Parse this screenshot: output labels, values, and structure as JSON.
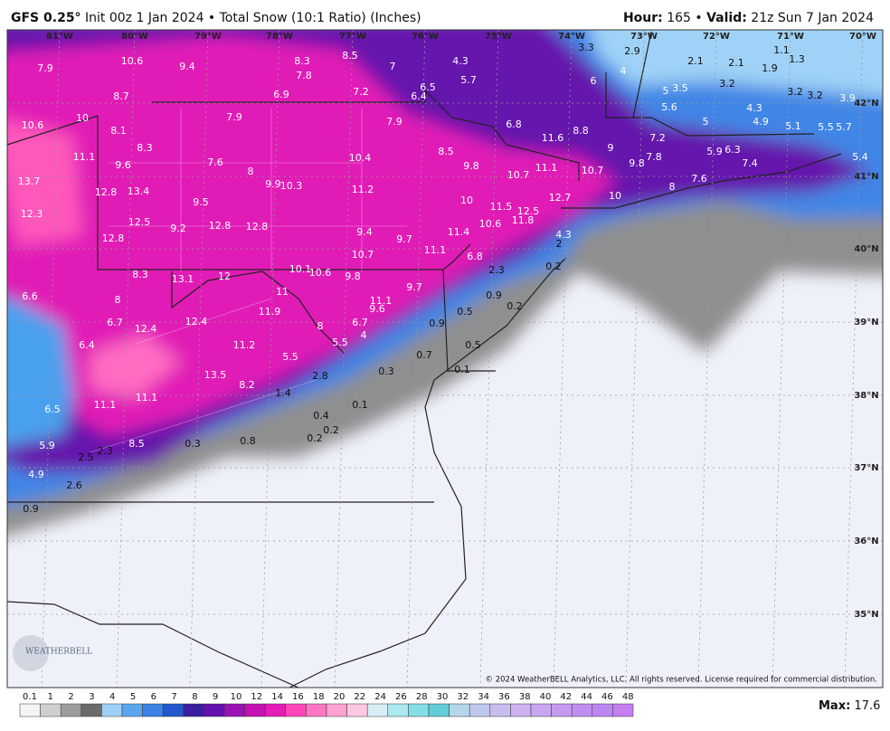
{
  "header": {
    "model": "GFS 0.25°",
    "description": "Init 00z 1 Jan 2024 • Total Snow (10:1 Ratio) (Inches)",
    "hour_label": "Hour:",
    "hour": "165 •",
    "valid_label": "Valid:",
    "valid": "21z Sun 7 Jan 2024"
  },
  "map": {
    "lon_labels": [
      "81°W",
      "80°W",
      "79°W",
      "78°W",
      "77°W",
      "76°W",
      "75°W",
      "74°W",
      "73°W",
      "72°W",
      "71°W",
      "70°W"
    ],
    "lat_labels": [
      "42°N",
      "41°N",
      "40°N",
      "39°N",
      "38°N",
      "37°N",
      "36°N",
      "35°N"
    ],
    "values": [
      7.9,
      10.6,
      9.4,
      8.3,
      7.8,
      8.5,
      7.0,
      6.9,
      7.2,
      6.4,
      6.5,
      4.3,
      5.7,
      3.3,
      2.9,
      4.0,
      6.0,
      2.1,
      2.1,
      1.9,
      1.1,
      1.3,
      3.5,
      3.2,
      5.0,
      3.2,
      3.2,
      3.9,
      5.6,
      4.3,
      5.0,
      4.9,
      5.1,
      5.5,
      5.7,
      5.4,
      8.7,
      10.6,
      10.0,
      8.1,
      7.9,
      7.9,
      6.8,
      8.8,
      11.6,
      9.0,
      7.2,
      5.9,
      6.3,
      7.4,
      7.8,
      9.8,
      11.1,
      8.3,
      9.6,
      7.6,
      8.0,
      10.4,
      8.5,
      9.8,
      10.7,
      11.1,
      10.7,
      7.6,
      8.0,
      10.0,
      12.7,
      13.7,
      12.8,
      13.4,
      9.9,
      10.3,
      11.2,
      9.5,
      10.0,
      11.5,
      12.5,
      11.8,
      12.3,
      12.5,
      12.8,
      12.8,
      9.2,
      10.6,
      11.4,
      9.4,
      9.7,
      4.3,
      2.0,
      12.8,
      11.1,
      10.7,
      6.8,
      0.2,
      2.3,
      10.1,
      10.6,
      9.8,
      8.3,
      13.1,
      12.0,
      9.7,
      11.0,
      6.6,
      8.0,
      11.1,
      9.6,
      0.9,
      0.2,
      11.9,
      0.5,
      6.7,
      12.4,
      12.4,
      8.0,
      6.7,
      4.0,
      0.9,
      5.5,
      11.2,
      6.4,
      0.5,
      5.5,
      0.7,
      0.1,
      0.3,
      2.8,
      13.5,
      8.2,
      1.4,
      11.1,
      11.1,
      0.1,
      6.5,
      0.4,
      0.2,
      0.2,
      0.8,
      0.3,
      8.5,
      5.9,
      2.3,
      2.5,
      4.9,
      2.6,
      0.9
    ]
  },
  "legend": {
    "labels": [
      0.1,
      1,
      2,
      3,
      4,
      5,
      6,
      7,
      8,
      9,
      10,
      12,
      14,
      16,
      18,
      20,
      22,
      24,
      26,
      28,
      30,
      32,
      34,
      36,
      38,
      40,
      42,
      44,
      46,
      48
    ],
    "colors": [
      "#f4f4f4",
      "#cfcfcf",
      "#9c9c9c",
      "#6a6a6a",
      "#9fd0f5",
      "#5aa6ee",
      "#3a82e4",
      "#2358cc",
      "#3a1f9e",
      "#6410ae",
      "#9a12b6",
      "#c412b0",
      "#e41cb6",
      "#ff46b8",
      "#ff76c4",
      "#ffa2d2",
      "#ffc8e2",
      "#d6eef4",
      "#ace8f0",
      "#84dee8",
      "#62ccd8",
      "#b6d6ea",
      "#c0c8ee",
      "#c8bcf0",
      "#ccb2f0",
      "#c8a6f0",
      "#c49af0",
      "#c08ef0",
      "#bc86f0",
      "#c47ef0"
    ]
  },
  "max_label": "Max:",
  "max": 17.6,
  "copyright": "© 2024 WeatherBELL Analytics, LLC. All rights reserved. License required for commercial distribution.",
  "logo": "WEATHERBELL"
}
